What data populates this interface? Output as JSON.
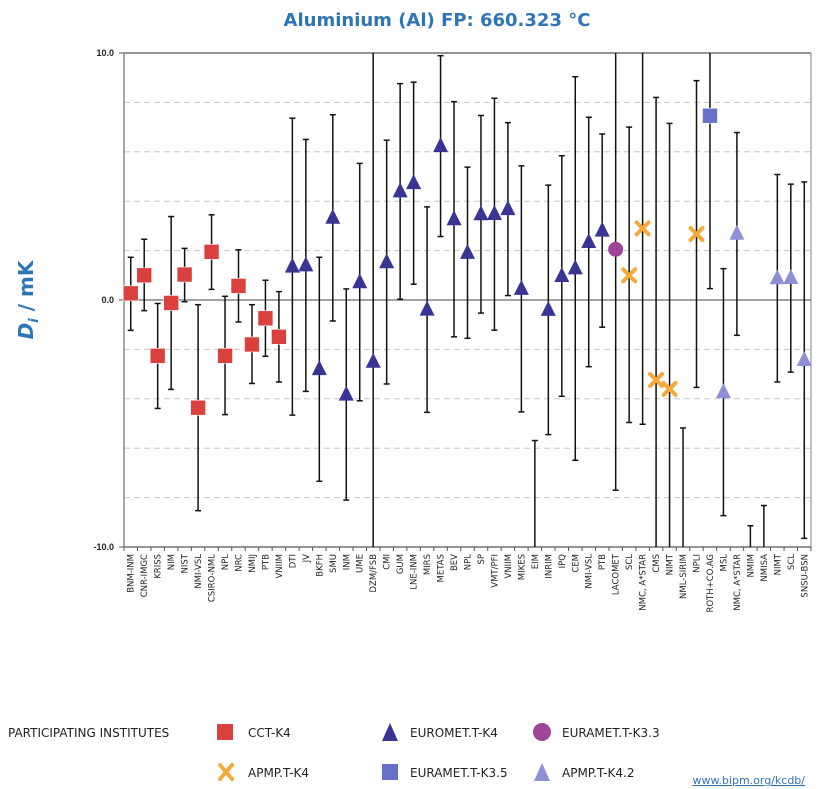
{
  "chart_data": {
    "type": "scatter",
    "title": "Aluminium (Al) FP: 660.323 °C",
    "ylabel_main": "D",
    "ylabel_sub": "i",
    "ylabel_unit": " / mK",
    "ylim": [
      -10,
      10
    ],
    "yticks": [
      "10.0",
      "0.0",
      "-10.0"
    ],
    "grid": "horizontal dashed every 2 mK",
    "legend_title": "PARTICIPATING INSTITUTES",
    "legend_placement": "bottom",
    "link": "www.bipm.org/kcdb/",
    "groups": [
      {
        "name": "CCT-K4",
        "marker": "square",
        "color": "#d9403e"
      },
      {
        "name": "EUROMET.T-K4",
        "marker": "triangle",
        "color": "#3a3494"
      },
      {
        "name": "EURAMET.T-K3.3",
        "marker": "circle",
        "color": "#a0449a"
      },
      {
        "name": "APMP.T-K4",
        "marker": "cross",
        "color": "#f4a93b"
      },
      {
        "name": "EURAMET.T-K3.5",
        "marker": "square",
        "color": "#6670c8"
      },
      {
        "name": "APMP.T-K4.2",
        "marker": "triangle",
        "color": "#8f8fd8"
      }
    ],
    "points": [
      {
        "label": "BNM-INM",
        "group": 0,
        "value": 0.27,
        "lower": -1.23,
        "upper": 1.73
      },
      {
        "label": "CNR-IMGC",
        "group": 0,
        "value": 1.0,
        "lower": -0.43,
        "upper": 2.46
      },
      {
        "label": "KRISS",
        "group": 0,
        "value": -2.26,
        "lower": -4.39,
        "upper": -0.14
      },
      {
        "label": "NIM",
        "group": 0,
        "value": -0.12,
        "lower": -3.62,
        "upper": 3.38
      },
      {
        "label": "NIST",
        "group": 0,
        "value": 1.03,
        "lower": -0.07,
        "upper": 2.09
      },
      {
        "label": "NMI-VSL",
        "group": 0,
        "value": -4.36,
        "lower": -8.53,
        "upper": -0.19
      },
      {
        "label": "CSIRO-NML",
        "group": 0,
        "value": 1.95,
        "lower": 0.43,
        "upper": 3.45
      },
      {
        "label": "NPL",
        "group": 0,
        "value": -2.26,
        "lower": -4.64,
        "upper": 0.15
      },
      {
        "label": "NRC",
        "group": 0,
        "value": 0.57,
        "lower": -0.89,
        "upper": 2.03
      },
      {
        "label": "NMIJ",
        "group": 0,
        "value": -1.8,
        "lower": -3.38,
        "upper": -0.19
      },
      {
        "label": "PTB",
        "group": 0,
        "value": -0.74,
        "lower": -2.28,
        "upper": 0.8
      },
      {
        "label": "VNIIM",
        "group": 0,
        "value": -1.49,
        "lower": -3.32,
        "upper": 0.34
      },
      {
        "label": "DTI",
        "group": 1,
        "value": 1.35,
        "lower": -4.66,
        "upper": 7.36
      },
      {
        "label": "JV",
        "group": 1,
        "value": 1.4,
        "lower": -3.7,
        "upper": 6.5
      },
      {
        "label": "BKFH",
        "group": 1,
        "value": -2.8,
        "lower": -7.34,
        "upper": 1.73
      },
      {
        "label": "SMU",
        "group": 1,
        "value": 3.33,
        "lower": -0.85,
        "upper": 7.5
      },
      {
        "label": "INM",
        "group": 1,
        "value": -3.83,
        "lower": -8.1,
        "upper": 0.45
      },
      {
        "label": "UME",
        "group": 1,
        "value": 0.72,
        "lower": -4.08,
        "upper": 5.53
      },
      {
        "label": "DZM/FSB",
        "group": 1,
        "value": -2.5,
        "lower": null,
        "upper": null
      },
      {
        "label": "CMI",
        "group": 1,
        "value": 1.53,
        "lower": -3.4,
        "upper": 6.47
      },
      {
        "label": "GUM",
        "group": 1,
        "value": 4.4,
        "lower": 0.03,
        "upper": 8.76
      },
      {
        "label": "LNE-INM",
        "group": 1,
        "value": 4.73,
        "lower": 0.64,
        "upper": 8.82
      },
      {
        "label": "MIRS",
        "group": 1,
        "value": -0.39,
        "lower": -4.55,
        "upper": 3.77
      },
      {
        "label": "METAS",
        "group": 1,
        "value": 6.23,
        "lower": 2.57,
        "upper": 9.89
      },
      {
        "label": "BEV",
        "group": 1,
        "value": 3.27,
        "lower": -1.49,
        "upper": 8.03
      },
      {
        "label": "NPL",
        "group": 1,
        "value": 1.91,
        "lower": -1.55,
        "upper": 5.38
      },
      {
        "label": "SP",
        "group": 1,
        "value": 3.47,
        "lower": -0.53,
        "upper": 7.47
      },
      {
        "label": "VMT/PFI",
        "group": 1,
        "value": 3.48,
        "lower": -1.22,
        "upper": 8.17
      },
      {
        "label": "VNIIM",
        "group": 1,
        "value": 3.68,
        "lower": 0.18,
        "upper": 7.18
      },
      {
        "label": "MIKES",
        "group": 1,
        "value": 0.45,
        "lower": -4.53,
        "upper": 5.43
      },
      {
        "label": "EIM",
        "group": 1,
        "value": null,
        "lower": null,
        "upper": -5.69
      },
      {
        "label": "INRIM",
        "group": 1,
        "value": -0.4,
        "lower": -5.45,
        "upper": 4.65
      },
      {
        "label": "IPQ",
        "group": 1,
        "value": 0.97,
        "lower": -3.9,
        "upper": 5.84
      },
      {
        "label": "CEM",
        "group": 1,
        "value": 1.28,
        "lower": -6.49,
        "upper": 9.04
      },
      {
        "label": "NMI-VSL",
        "group": 1,
        "value": 2.35,
        "lower": -2.7,
        "upper": 7.4
      },
      {
        "label": "PTB",
        "group": 1,
        "value": 2.81,
        "lower": -1.1,
        "upper": 6.72
      },
      {
        "label": "LACOMET",
        "group": 2,
        "value": 2.05,
        "lower": -7.7,
        "upper": null
      },
      {
        "label": "SCL",
        "group": 3,
        "value": 1.0,
        "lower": -4.96,
        "upper": 7.0
      },
      {
        "label": "NMC, A*STAR",
        "group": 3,
        "value": 2.9,
        "lower": -5.03,
        "upper": null
      },
      {
        "label": "CMS",
        "group": 3,
        "value": -3.24,
        "lower": null,
        "upper": 8.2
      },
      {
        "label": "NIMT",
        "group": 3,
        "value": -3.6,
        "lower": null,
        "upper": 7.15
      },
      {
        "label": "NML-SIRIM",
        "group": 3,
        "value": null,
        "lower": null,
        "upper": -5.18
      },
      {
        "label": "NPLI",
        "group": 3,
        "value": 2.67,
        "lower": -3.54,
        "upper": 8.88
      },
      {
        "label": "ROTH+CO.AG",
        "group": 4,
        "value": 7.46,
        "lower": 0.46,
        "upper": null
      },
      {
        "label": "MSL",
        "group": 5,
        "value": -3.73,
        "lower": -8.73,
        "upper": 1.27
      },
      {
        "label": "NMC, A*STAR",
        "group": 5,
        "value": 2.68,
        "lower": -1.43,
        "upper": 6.78
      },
      {
        "label": "NMIM",
        "group": 5,
        "value": null,
        "lower": null,
        "upper": -9.14
      },
      {
        "label": "NMISA",
        "group": 5,
        "value": null,
        "lower": null,
        "upper": -8.32
      },
      {
        "label": "NIMT",
        "group": 5,
        "value": 0.88,
        "lower": -3.32,
        "upper": 5.08
      },
      {
        "label": "SCL",
        "group": 5,
        "value": 0.89,
        "lower": -2.92,
        "upper": 4.69
      },
      {
        "label": "SNSU-BSN",
        "group": 5,
        "value": -2.43,
        "lower": -9.65,
        "upper": 4.78
      }
    ]
  }
}
